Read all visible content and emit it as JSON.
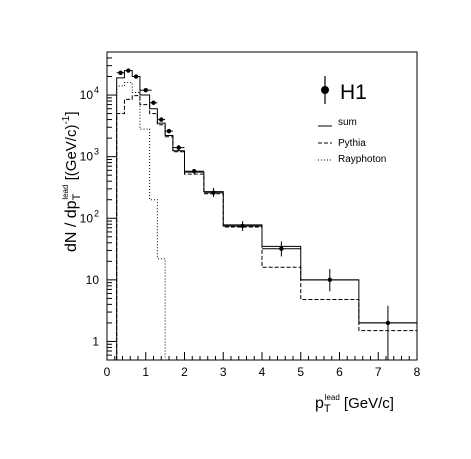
{
  "chart_data": {
    "type": "line",
    "title": "",
    "xlabel": {
      "main": "p",
      "sub": "T",
      "sup": "lead",
      "unit": " [GeV/c]"
    },
    "ylabel": {
      "main": "dN / dp",
      "sub": "T",
      "sup": "lead",
      "unit": " [(GeV/c)",
      "unit_exp": "-1",
      "unit_close": "]"
    },
    "xlim": [
      0,
      8
    ],
    "ylim": [
      0.5,
      50000
    ],
    "yscale": "log",
    "grid": false,
    "legend_position": "right",
    "x_ticks": [
      "0",
      "1",
      "2",
      "3",
      "4",
      "5",
      "6",
      "7",
      "8"
    ],
    "y_ticks": [
      {
        "value": 1,
        "label": "1",
        "exp": ""
      },
      {
        "value": 10,
        "label": "10",
        "exp": ""
      },
      {
        "value": 100,
        "label": "10",
        "exp": "2"
      },
      {
        "value": 1000,
        "label": "10",
        "exp": "3"
      },
      {
        "value": 10000,
        "label": "10",
        "exp": "4"
      }
    ],
    "data_series": {
      "name": "H1",
      "points": [
        {
          "x": 0.35,
          "y": 23000,
          "xerr": 0.1,
          "yerr_lo": 21500,
          "yerr_hi": 24500
        },
        {
          "x": 0.55,
          "y": 25000,
          "xerr": 0.1,
          "yerr_lo": 23500,
          "yerr_hi": 26500
        },
        {
          "x": 0.75,
          "y": 20000,
          "xerr": 0.1,
          "yerr_lo": 18800,
          "yerr_hi": 21200
        },
        {
          "x": 1.0,
          "y": 12000,
          "xerr": 0.15,
          "yerr_lo": 11200,
          "yerr_hi": 12800
        },
        {
          "x": 1.2,
          "y": 7500,
          "xerr": 0.1,
          "yerr_lo": 7000,
          "yerr_hi": 8000
        },
        {
          "x": 1.4,
          "y": 4000,
          "xerr": 0.1,
          "yerr_lo": 3700,
          "yerr_hi": 4300
        },
        {
          "x": 1.6,
          "y": 2600,
          "xerr": 0.1,
          "yerr_lo": 2400,
          "yerr_hi": 2800
        },
        {
          "x": 1.85,
          "y": 1400,
          "xerr": 0.15,
          "yerr_lo": 1250,
          "yerr_hi": 1550
        },
        {
          "x": 2.25,
          "y": 580,
          "xerr": 0.25,
          "yerr_lo": 530,
          "yerr_hi": 630
        },
        {
          "x": 2.75,
          "y": 260,
          "xerr": 0.25,
          "yerr_lo": 220,
          "yerr_hi": 310
        },
        {
          "x": 3.5,
          "y": 75,
          "xerr": 0.5,
          "yerr_lo": 62,
          "yerr_hi": 90
        },
        {
          "x": 4.5,
          "y": 32,
          "xerr": 0.5,
          "yerr_lo": 24,
          "yerr_hi": 42
        },
        {
          "x": 5.75,
          "y": 10,
          "xerr": 0.75,
          "yerr_lo": 6.5,
          "yerr_hi": 15
        },
        {
          "x": 7.25,
          "y": 2,
          "xerr": 0.75,
          "yerr_lo": 0.5,
          "yerr_hi": 3.8
        }
      ]
    },
    "histograms": [
      {
        "name": "sum",
        "style": "solid",
        "edges": [
          0.25,
          0.45,
          0.65,
          0.85,
          1.1,
          1.3,
          1.5,
          1.7,
          2.0,
          2.5,
          3.0,
          4.0,
          5.0,
          6.5,
          8.0
        ],
        "values": [
          19000,
          25000,
          20000,
          10000,
          6000,
          3500,
          2200,
          1250,
          560,
          270,
          78,
          35,
          10,
          2
        ]
      },
      {
        "name": "Pythia",
        "style": "dashed",
        "edges": [
          0.25,
          0.45,
          0.65,
          0.85,
          1.1,
          1.3,
          1.5,
          1.7,
          2.0,
          2.5,
          3.0,
          4.0,
          5.0,
          6.5,
          8.0
        ],
        "values": [
          5000,
          8500,
          9800,
          7000,
          5000,
          3300,
          2100,
          1200,
          520,
          250,
          72,
          16,
          4.8,
          1.5
        ]
      },
      {
        "name": "Rayphoton",
        "style": "dotted",
        "edges": [
          0.25,
          0.45,
          0.65,
          0.85,
          1.1,
          1.3,
          1.5,
          1.7
        ],
        "values": [
          14000,
          16000,
          11000,
          2800,
          200,
          22,
          0
        ]
      }
    ]
  }
}
